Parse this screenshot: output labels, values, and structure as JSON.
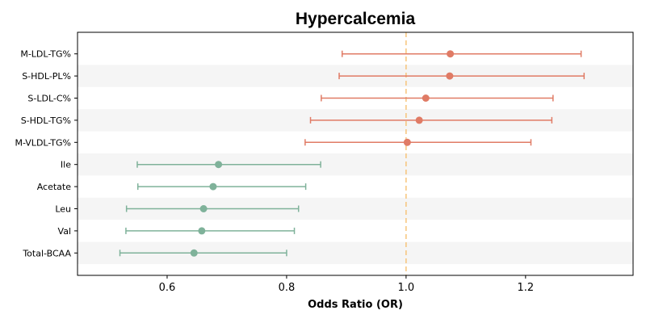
{
  "chart_data": {
    "type": "forest",
    "title": "Hypercalcemia",
    "xlabel": "Odds Ratio (OR)",
    "ylabel": "",
    "xlim": [
      0.45,
      1.38
    ],
    "xticks": [
      0.6,
      0.8,
      1.0,
      1.2
    ],
    "xtick_labels": [
      "0.6",
      "0.8",
      "1.0",
      "1.2"
    ],
    "reference_line": 1.0,
    "grid": false,
    "colors": {
      "positive": "#e07b65",
      "negative": "#7fb29a",
      "reference": "#f7c47a",
      "band": "#f5f5f5"
    },
    "items": [
      {
        "label": "M-LDL-TG%",
        "or": 1.074,
        "lower": 0.893,
        "upper": 1.293,
        "group": "positive"
      },
      {
        "label": "S-HDL-PL%",
        "or": 1.073,
        "lower": 0.888,
        "upper": 1.298,
        "group": "positive"
      },
      {
        "label": "S-LDL-C%",
        "or": 1.033,
        "lower": 0.858,
        "upper": 1.246,
        "group": "positive"
      },
      {
        "label": "S-HDL-TG%",
        "or": 1.022,
        "lower": 0.84,
        "upper": 1.244,
        "group": "positive"
      },
      {
        "label": "M-VLDL-TG%",
        "or": 1.002,
        "lower": 0.831,
        "upper": 1.209,
        "group": "positive"
      },
      {
        "label": "Ile",
        "or": 0.686,
        "lower": 0.55,
        "upper": 0.857,
        "group": "negative"
      },
      {
        "label": "Acetate",
        "or": 0.677,
        "lower": 0.551,
        "upper": 0.832,
        "group": "negative"
      },
      {
        "label": "Leu",
        "or": 0.661,
        "lower": 0.532,
        "upper": 0.82,
        "group": "negative"
      },
      {
        "label": "Val",
        "or": 0.658,
        "lower": 0.531,
        "upper": 0.813,
        "group": "negative"
      },
      {
        "label": "Total-BCAA",
        "or": 0.645,
        "lower": 0.521,
        "upper": 0.8,
        "group": "negative"
      }
    ]
  }
}
